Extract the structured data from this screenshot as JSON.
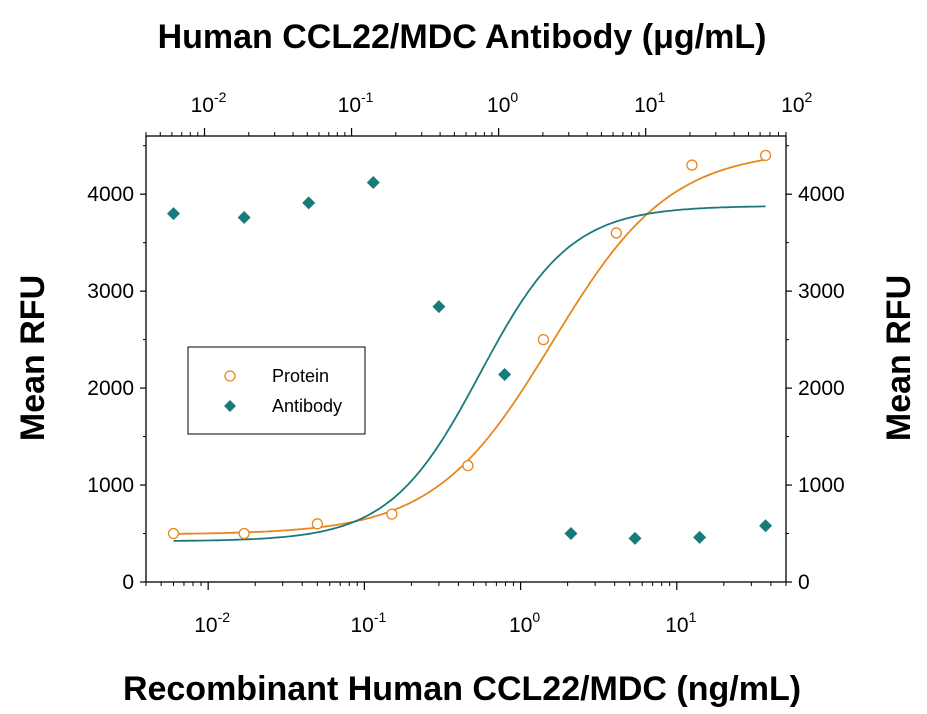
{
  "chart_data": {
    "type": "scatter",
    "title": "Human CCL22/MDC Antibody (μg/mL)",
    "xlabel": "Recombinant Human CCL22/MDC (ng/mL)",
    "ylabel_left": "Mean RFU",
    "ylabel_right": "Mean RFU",
    "x_scale": "log",
    "xlim": [
      0.004,
      50
    ],
    "ylim": [
      0,
      4600
    ],
    "y_ticks": [
      0,
      1000,
      2000,
      3000,
      4000
    ],
    "y_tick_labels": [
      "0",
      "1000",
      "2000",
      "3000",
      "4000"
    ],
    "x_bottom_ticks": [
      {
        "base": "10",
        "exp": "-2",
        "value": 0.01
      },
      {
        "base": "10",
        "exp": "-1",
        "value": 0.1
      },
      {
        "base": "10",
        "exp": "0",
        "value": 1
      },
      {
        "base": "10",
        "exp": "1",
        "value": 10
      }
    ],
    "x_top_ticks": [
      {
        "base": "10",
        "exp": "-2",
        "value": 0.01
      },
      {
        "base": "10",
        "exp": "-1",
        "value": 0.1
      },
      {
        "base": "10",
        "exp": "0",
        "value": 1
      },
      {
        "base": "10",
        "exp": "1",
        "value": 10
      },
      {
        "base": "10",
        "exp": "2",
        "value": 100
      }
    ],
    "x_top_lim": [
      0.004,
      90
    ],
    "legend_position": "center-left",
    "series": [
      {
        "name": "Protein",
        "marker": "open-circle",
        "color": "#e8871e",
        "points": [
          {
            "x": 0.006,
            "y": 500
          },
          {
            "x": 0.017,
            "y": 500
          },
          {
            "x": 0.05,
            "y": 600
          },
          {
            "x": 0.15,
            "y": 700
          },
          {
            "x": 0.46,
            "y": 1200
          },
          {
            "x": 1.4,
            "y": 2500
          },
          {
            "x": 4.1,
            "y": 3600
          },
          {
            "x": 12.5,
            "y": 4300
          },
          {
            "x": 37,
            "y": 4400
          }
        ],
        "fit": {
          "bottom": 490,
          "top": 4460,
          "ec50": 1.6,
          "hill": 1.15
        }
      },
      {
        "name": "Antibody",
        "marker": "filled-diamond",
        "color": "#1a7a7a",
        "points": [
          {
            "x": 0.006,
            "y": 3800
          },
          {
            "x": 0.017,
            "y": 3760
          },
          {
            "x": 0.044,
            "y": 3910
          },
          {
            "x": 0.114,
            "y": 4120
          },
          {
            "x": 0.3,
            "y": 2840
          },
          {
            "x": 0.79,
            "y": 2140
          },
          {
            "x": 2.1,
            "y": 500
          },
          {
            "x": 5.4,
            "y": 450
          },
          {
            "x": 14,
            "y": 460
          },
          {
            "x": 37,
            "y": 580
          }
        ],
        "fit": {
          "bottom": 420,
          "top": 3880,
          "ec50": 0.55,
          "hill": 1.5
        }
      }
    ]
  }
}
